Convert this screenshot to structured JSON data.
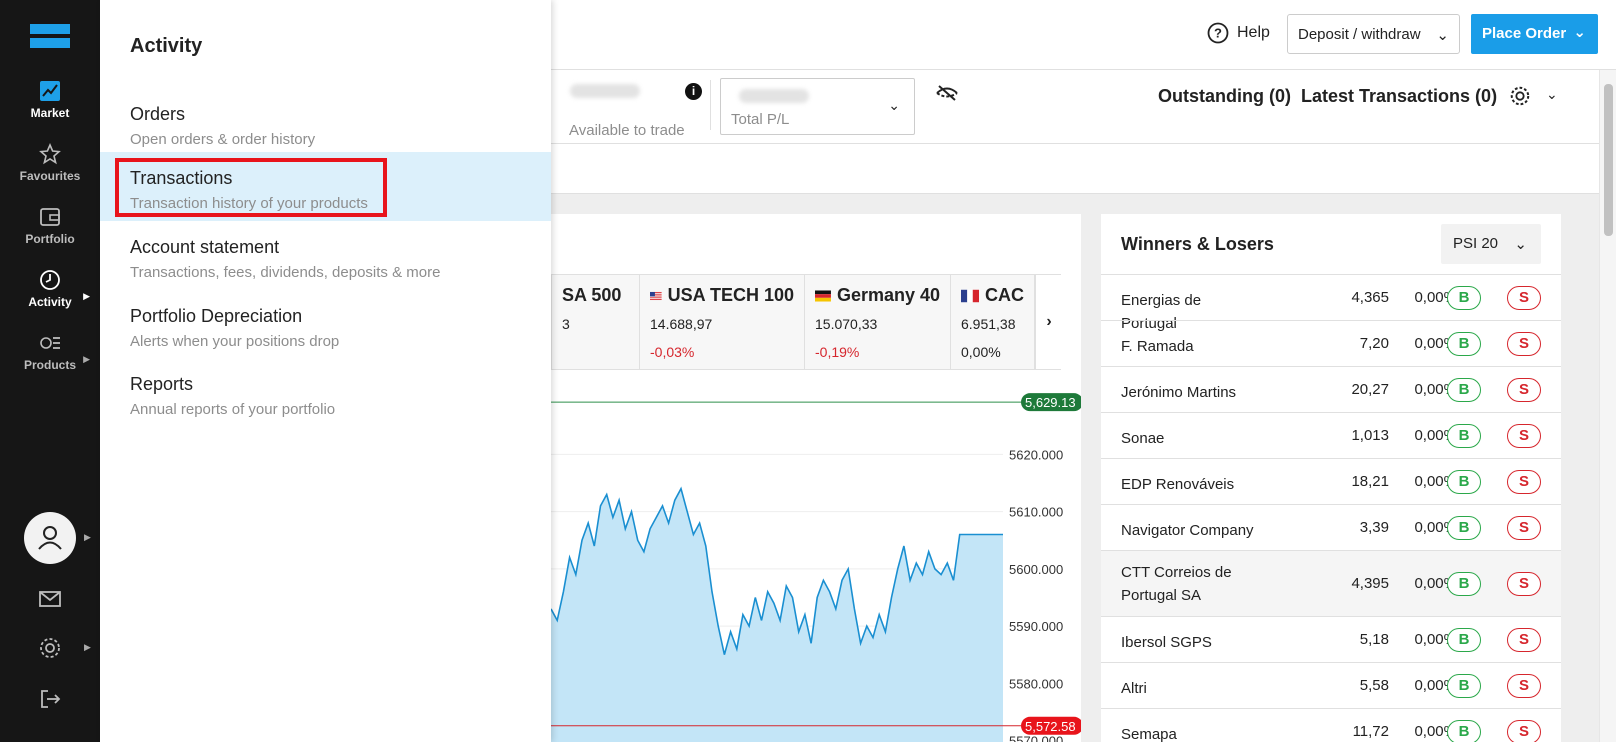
{
  "colors": {
    "accent": "#1a9de8",
    "nav_bg": "#161616",
    "selected_bg": "#dcf0fb",
    "highlight": "#e8141b",
    "positive": "#2ba84a",
    "negative": "#d6262d"
  },
  "nav": {
    "items": [
      {
        "label": "Market",
        "icon": "chart-line-icon"
      },
      {
        "label": "Favourites",
        "icon": "star-icon"
      },
      {
        "label": "Portfolio",
        "icon": "wallet-icon"
      },
      {
        "label": "Activity",
        "icon": "clock-icon"
      },
      {
        "label": "Products",
        "icon": "list-icon"
      }
    ]
  },
  "panel": {
    "title": "Activity",
    "items": [
      {
        "title": "Orders",
        "subtitle": "Open orders & order history"
      },
      {
        "title": "Transactions",
        "subtitle": "Transaction history of your products"
      },
      {
        "title": "Account statement",
        "subtitle": "Transactions, fees, dividends, deposits & more"
      },
      {
        "title": "Portfolio Depreciation",
        "subtitle": "Alerts when your positions drop"
      },
      {
        "title": "Reports",
        "subtitle": "Annual reports of your portfolio"
      }
    ]
  },
  "header": {
    "help": "Help",
    "deposit": "Deposit / withdraw",
    "place_order": "Place Order"
  },
  "balance": {
    "available_label": "Available to trade",
    "pl_label": "Total P/L",
    "outstanding": "Outstanding (0)",
    "latest": "Latest Transactions (0)"
  },
  "tickers": [
    {
      "name": "SA 500",
      "price": "3",
      "change": ""
    },
    {
      "name": "USA TECH 100",
      "price": "14.688,97",
      "change": "-0,03%"
    },
    {
      "name": "Germany 40",
      "price": "15.070,33",
      "change": "-0,19%"
    },
    {
      "name": "CAC",
      "price": "6.951,38",
      "change": "0,00%"
    }
  ],
  "chart": {
    "high_label": "5,629.13",
    "low_label": "5,572.58",
    "y_ticks": [
      "5620.000",
      "5610.000",
      "5600.000",
      "5590.000",
      "5580.000",
      "5570.000"
    ]
  },
  "chart_data": {
    "type": "area",
    "title": "",
    "ylim": [
      5568,
      5633
    ],
    "y_ticks": [
      5620,
      5610,
      5600,
      5590,
      5580,
      5570
    ],
    "high": 5629.13,
    "low": 5572.58,
    "values": [
      5593,
      5591,
      5596,
      5602,
      5599,
      5605,
      5608,
      5604,
      5611,
      5613,
      5609,
      5612,
      5607,
      5610,
      5605,
      5603,
      5607,
      5609,
      5611,
      5608,
      5612,
      5614,
      5610,
      5606,
      5608,
      5604,
      5596,
      5590,
      5585,
      5589,
      5586,
      5592,
      5590,
      5595,
      5591,
      5596,
      5594,
      5591,
      5597,
      5595,
      5589,
      5592,
      5587,
      5595,
      5598,
      5596,
      5593,
      5598,
      5600,
      5593,
      5587,
      5590,
      5588,
      5592,
      5589,
      5595,
      5600,
      5604,
      5598,
      5601,
      5599,
      5603,
      5600,
      5599,
      5601,
      5598,
      5606,
      5606,
      5606,
      5606,
      5606,
      5606,
      5606,
      5606
    ]
  },
  "winners": {
    "title": "Winners & Losers",
    "index": "PSI 20",
    "buy_label": "B",
    "sell_label": "S",
    "rows": [
      {
        "name": "Energias de Portugal",
        "price": "4,365",
        "pct": "0,00%"
      },
      {
        "name": "F. Ramada",
        "price": "7,20",
        "pct": "0,00%"
      },
      {
        "name": "Jerónimo Martins",
        "price": "20,27",
        "pct": "0,00%"
      },
      {
        "name": "Sonae",
        "price": "1,013",
        "pct": "0,00%"
      },
      {
        "name": "EDP Renováveis",
        "price": "18,21",
        "pct": "0,00%"
      },
      {
        "name": "Navigator Company",
        "price": "3,39",
        "pct": "0,00%"
      },
      {
        "name": "CTT Correios de Portugal SA",
        "price": "4,395",
        "pct": "0,00%"
      },
      {
        "name": "Ibersol SGPS",
        "price": "5,18",
        "pct": "0,00%"
      },
      {
        "name": "Altri",
        "price": "5,58",
        "pct": "0,00%"
      },
      {
        "name": "Semapa",
        "price": "11,72",
        "pct": "0,00%"
      }
    ]
  }
}
